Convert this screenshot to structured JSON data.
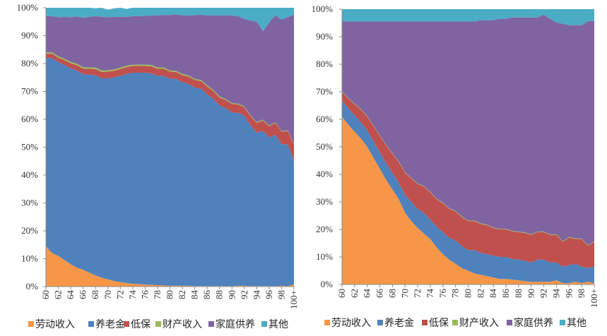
{
  "chart_data": [
    {
      "type": "area",
      "stacked": "percent",
      "title": "",
      "xlabel": "",
      "ylabel": "",
      "ylim": [
        0,
        100
      ],
      "y_ticks": [
        "0%",
        "10%",
        "20%",
        "30%",
        "40%",
        "50%",
        "60%",
        "70%",
        "80%",
        "90%",
        "100%"
      ],
      "x_ticks": [
        "60",
        "62",
        "64",
        "66",
        "68",
        "70",
        "72",
        "74",
        "76",
        "78",
        "80",
        "82",
        "84",
        "86",
        "88",
        "90",
        "92",
        "94",
        "96",
        "98",
        "100+"
      ],
      "legend_position": "bottom",
      "series": [
        {
          "name": "劳动收入",
          "color": "#f79646",
          "values": [
            14.5,
            12,
            11,
            9.5,
            8,
            6.8,
            6,
            5,
            4,
            3.2,
            2.6,
            2,
            1.6,
            1.3,
            1,
            0.9,
            0.7,
            0.6,
            0.5,
            0.4,
            0.3,
            0.3,
            0.3,
            0.3,
            0.2,
            0.2,
            0.2,
            0.2,
            0.2,
            0.2,
            0.2,
            0.3,
            0.3,
            0.2,
            0.2,
            0.2,
            0.2,
            0.2,
            0.3,
            0.2,
            0.8
          ]
        },
        {
          "name": "养老金",
          "color": "#4f81bd",
          "values": [
            67.5,
            70,
            69.5,
            70,
            70.3,
            70.7,
            70.2,
            71,
            71.8,
            71.5,
            72.1,
            73,
            74,
            75,
            75.7,
            75.8,
            76,
            75.9,
            75.1,
            75.2,
            74.3,
            74.2,
            73,
            72.4,
            71.2,
            70.8,
            68.8,
            67.1,
            64.8,
            63.8,
            62.3,
            62,
            61,
            57.7,
            55,
            55.7,
            53.3,
            54.3,
            50.8,
            50.8,
            44.2
          ]
        },
        {
          "name": "低保",
          "color": "#c0504d",
          "values": [
            1.5,
            1.5,
            1.6,
            1.7,
            1.8,
            1.9,
            2,
            2.1,
            2.2,
            2.3,
            2.4,
            2.4,
            2.4,
            2.4,
            2.4,
            2.4,
            2.4,
            2.5,
            2.5,
            2.5,
            2.5,
            2.5,
            2.6,
            2.6,
            2.7,
            2.7,
            2.8,
            2.8,
            2.8,
            2.9,
            3,
            3,
            3,
            3.2,
            3.5,
            3.7,
            4,
            4.2,
            4.5,
            4.8,
            6
          ]
        },
        {
          "name": "财产收入",
          "color": "#9bbb59",
          "values": [
            0.5,
            0.5,
            0.5,
            0.5,
            0.5,
            0.5,
            0.5,
            0.5,
            0.5,
            0.5,
            0.5,
            0.5,
            0.5,
            0.5,
            0.5,
            0.5,
            0.5,
            0.5,
            0.5,
            0.5,
            0.4,
            0.4,
            0.4,
            0.4,
            0.4,
            0.4,
            0.4,
            0.4,
            0.4,
            0.3,
            0.3,
            0.3,
            0.3,
            0.3,
            0.3,
            0.3,
            0.2,
            0.2,
            0.2,
            0.2,
            0.2
          ]
        },
        {
          "name": "家庭供养",
          "color": "#8064a2",
          "values": [
            13,
            13,
            14,
            15,
            16,
            17,
            17.7,
            18.2,
            18.5,
            19.3,
            19,
            18.8,
            18.3,
            17.5,
            17.4,
            17.4,
            17.5,
            17.7,
            18.6,
            18.8,
            19.9,
            20.2,
            21,
            21.5,
            22.9,
            23.4,
            25,
            26.8,
            29,
            30.1,
            31.4,
            31.4,
            31.4,
            34,
            36,
            31.7,
            37,
            38.4,
            40,
            40.6,
            46.3
          ]
        },
        {
          "name": "其他",
          "color": "#4bacc6",
          "values": [
            3,
            3,
            3.4,
            3.3,
            3.4,
            3.1,
            3.6,
            3.2,
            2.8,
            3.2,
            2.7,
            3.1,
            3.2,
            2.9,
            3,
            3.2,
            2.9,
            2.8,
            2.8,
            2.6,
            2.6,
            2.4,
            2.7,
            2.8,
            2.6,
            2.5,
            2.8,
            2.7,
            2.8,
            2.7,
            2.8,
            3,
            4,
            4.6,
            5,
            8.4,
            5.3,
            2.7,
            4.2,
            3.4,
            2.5
          ]
        }
      ]
    },
    {
      "type": "area",
      "stacked": "percent",
      "title": "",
      "xlabel": "",
      "ylabel": "",
      "ylim": [
        0,
        100
      ],
      "y_ticks": [
        "0%",
        "10%",
        "20%",
        "30%",
        "40%",
        "50%",
        "60%",
        "70%",
        "80%",
        "90%",
        "100%"
      ],
      "x_ticks": [
        "60",
        "62",
        "64",
        "66",
        "68",
        "70",
        "72",
        "74",
        "76",
        "78",
        "80",
        "82",
        "84",
        "86",
        "88",
        "90",
        "92",
        "94",
        "96",
        "98",
        "100+"
      ],
      "legend_position": "bottom",
      "series": [
        {
          "name": "劳动收入",
          "color": "#f79646",
          "values": [
            61,
            58,
            55.5,
            53,
            50,
            46,
            42,
            38,
            34.5,
            31,
            26,
            23,
            20.5,
            18.5,
            16.5,
            13.5,
            11,
            9,
            7.5,
            6,
            5,
            4,
            3.5,
            3,
            2.5,
            2,
            2,
            1.8,
            1.5,
            1.2,
            1,
            1,
            1,
            1,
            1.5,
            0.5,
            0.5,
            1,
            0.5,
            1,
            0.5
          ]
        },
        {
          "name": "养老金",
          "color": "#4f81bd",
          "values": [
            6,
            6,
            6,
            6,
            6,
            6,
            6,
            6,
            6,
            6,
            6.5,
            7,
            7,
            7.5,
            7,
            7.5,
            8,
            8,
            8.5,
            8,
            7.5,
            8.5,
            8,
            8,
            8,
            8,
            8,
            7.5,
            7.5,
            7.5,
            7,
            8,
            8,
            7,
            6.5,
            6,
            6.5,
            6.5,
            6,
            5,
            6
          ]
        },
        {
          "name": "低保",
          "color": "#c0504d",
          "values": [
            3,
            3.5,
            4,
            4.5,
            5,
            5.5,
            6,
            6.5,
            7,
            7.5,
            8,
            8.5,
            9,
            9.5,
            10,
            10,
            10.5,
            10.5,
            10.5,
            10.5,
            10.5,
            10.5,
            10.5,
            10.5,
            10,
            10,
            10,
            10,
            10,
            10,
            10,
            10,
            10,
            10,
            10,
            9,
            10,
            9,
            10,
            8,
            9
          ]
        },
        {
          "name": "财产收入",
          "color": "#9bbb59",
          "values": [
            0.2,
            0.2,
            0.2,
            0.2,
            0.2,
            0.2,
            0.2,
            0.2,
            0.2,
            0.2,
            0.2,
            0.2,
            0.2,
            0.2,
            0.2,
            0.2,
            0.2,
            0.2,
            0.2,
            0.2,
            0.2,
            0.2,
            0.2,
            0.2,
            0.2,
            0.2,
            0.2,
            0.2,
            0.2,
            0.2,
            0.2,
            0.2,
            0.2,
            0.2,
            0.2,
            0.2,
            0.2,
            0.2,
            0.2,
            0.2,
            0.2
          ]
        },
        {
          "name": "家庭供养",
          "color": "#8064a2",
          "values": [
            25.3,
            27.8,
            29.8,
            31.8,
            34.3,
            37.8,
            41.3,
            44.8,
            47.8,
            50.8,
            54.8,
            56.8,
            58.8,
            59.8,
            61.8,
            64.3,
            65.8,
            67.8,
            68.8,
            70.8,
            72.3,
            72.3,
            73.8,
            74.3,
            75.3,
            76.3,
            76.3,
            77.5,
            77.8,
            78.1,
            78.8,
            77.8,
            78.8,
            78.3,
            77,
            79,
            77,
            77.5,
            77.5,
            81.5,
            80
          ]
        },
        {
          "name": "其他",
          "color": "#4bacc6",
          "values": [
            4.5,
            4.5,
            4.5,
            4.5,
            4.5,
            4.5,
            4.5,
            4.5,
            4.5,
            4.5,
            4.5,
            4.5,
            4.5,
            4.5,
            4.5,
            4.5,
            4.5,
            4.5,
            4.5,
            4.5,
            4.5,
            4.5,
            4,
            4,
            4,
            3.5,
            3.5,
            3,
            3,
            3,
            3,
            3,
            2,
            3.5,
            4.8,
            5.3,
            5.8,
            5.8,
            5.8,
            4.3,
            4.3
          ]
        }
      ]
    }
  ]
}
